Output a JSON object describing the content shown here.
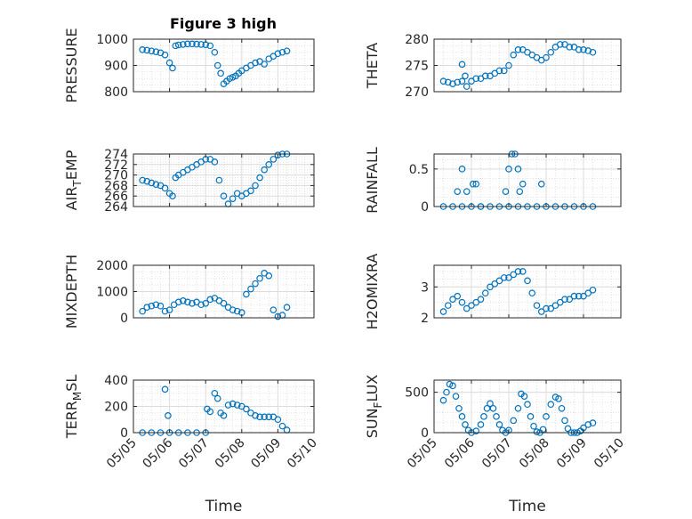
{
  "figure": {
    "title": "Figure 3 high"
  },
  "colors": {
    "marker": "#0072BD",
    "axis": "#262626",
    "grid": "#dcdcdc"
  },
  "chart_data": [
    {
      "type": "scatter",
      "panel": "pressure",
      "title": "Figure 3 high",
      "ylabel": "PRESSURE",
      "xlabel": "",
      "xlim": [
        "05/05",
        "05/10"
      ],
      "ylim": [
        800,
        1000
      ],
      "xticks": [
        "05/05",
        "05/06",
        "05/07",
        "05/08",
        "05/09",
        "05/10"
      ],
      "show_xticks": false,
      "yticks": [
        "800",
        "900",
        "1000"
      ],
      "ytick_values": [
        800,
        900,
        1000
      ],
      "grid": true,
      "series": [
        {
          "x": [
            "05/05 06:00",
            "05/05 09:00",
            "05/05 12:00",
            "05/05 15:00",
            "05/05 18:00",
            "05/05 21:00",
            "05/06 00:00",
            "05/06 02:00",
            "05/06 04:00",
            "05/06 06:00",
            "05/06 09:00",
            "05/06 12:00",
            "05/06 15:00",
            "05/06 18:00",
            "05/06 21:00",
            "05/07 00:00",
            "05/07 03:00",
            "05/07 06:00",
            "05/07 08:00",
            "05/07 10:00",
            "05/07 12:00",
            "05/07 14:00",
            "05/07 16:00",
            "05/07 18:00",
            "05/07 20:00",
            "05/07 22:00",
            "05/08 00:00",
            "05/08 03:00",
            "05/08 06:00",
            "05/08 09:00",
            "05/08 12:00",
            "05/08 15:00",
            "05/08 18:00",
            "05/08 21:00",
            "05/09 00:00",
            "05/09 03:00",
            "05/09 06:00"
          ],
          "y": [
            960,
            958,
            955,
            952,
            948,
            940,
            910,
            890,
            975,
            978,
            980,
            982,
            982,
            981,
            980,
            979,
            975,
            950,
            900,
            870,
            830,
            840,
            850,
            855,
            860,
            870,
            880,
            890,
            900,
            910,
            915,
            905,
            925,
            935,
            945,
            950,
            955
          ]
        }
      ]
    },
    {
      "type": "scatter",
      "panel": "theta",
      "title": "",
      "ylabel": "THETA",
      "xlabel": "",
      "xlim": [
        "05/05",
        "05/10"
      ],
      "ylim": [
        270,
        280
      ],
      "xticks": [
        "05/05",
        "05/06",
        "05/07",
        "05/08",
        "05/09",
        "05/10"
      ],
      "show_xticks": false,
      "yticks": [
        "270",
        "275",
        "280"
      ],
      "ytick_values": [
        270,
        275,
        280
      ],
      "grid": true,
      "series": [
        {
          "x": [
            "05/05 06:00",
            "05/05 09:00",
            "05/05 12:00",
            "05/05 15:00",
            "05/05 18:00",
            "05/05 21:00",
            "05/06 00:00",
            "05/06 03:00",
            "05/06 06:00",
            "05/06 09:00",
            "05/06 12:00",
            "05/06 15:00",
            "05/06 18:00",
            "05/06 21:00",
            "05/07 00:00",
            "05/07 03:00",
            "05/07 06:00",
            "05/07 09:00",
            "05/07 12:00",
            "05/07 15:00",
            "05/07 18:00",
            "05/07 21:00",
            "05/08 00:00",
            "05/08 03:00",
            "05/08 06:00",
            "05/08 09:00",
            "05/08 12:00",
            "05/08 15:00",
            "05/08 18:00",
            "05/08 21:00",
            "05/09 00:00",
            "05/09 03:00",
            "05/09 06:00",
            "05/05 18:00",
            "05/05 20:00"
          ],
          "y": [
            272,
            271.8,
            271.5,
            271.8,
            272,
            271,
            272,
            272.5,
            272.5,
            273,
            273,
            273.5,
            274,
            274,
            275,
            277,
            278,
            278,
            277.5,
            277,
            276.5,
            276,
            276.5,
            277.5,
            278.5,
            279,
            279,
            278.5,
            278.5,
            278,
            278,
            277.8,
            277.5,
            275.2,
            273
          ]
        }
      ]
    },
    {
      "type": "scatter",
      "panel": "air_temp",
      "title": "",
      "ylabel": "AIR_TEMP",
      "xlabel": "",
      "xlim": [
        "05/05",
        "05/10"
      ],
      "ylim": [
        264,
        274
      ],
      "xticks": [
        "05/05",
        "05/06",
        "05/07",
        "05/08",
        "05/09",
        "05/10"
      ],
      "show_xticks": false,
      "yticks": [
        "264",
        "266",
        "268",
        "270",
        "272",
        "274"
      ],
      "ytick_values": [
        264,
        266,
        268,
        270,
        272,
        274
      ],
      "grid": true,
      "series": [
        {
          "x": [
            "05/05 06:00",
            "05/05 09:00",
            "05/05 12:00",
            "05/05 15:00",
            "05/05 18:00",
            "05/05 21:00",
            "05/06 00:00",
            "05/06 02:00",
            "05/06 04:00",
            "05/06 06:00",
            "05/06 09:00",
            "05/06 12:00",
            "05/06 15:00",
            "05/06 18:00",
            "05/06 21:00",
            "05/07 00:00",
            "05/07 03:00",
            "05/07 06:00",
            "05/07 09:00",
            "05/07 12:00",
            "05/07 15:00",
            "05/07 18:00",
            "05/07 21:00",
            "05/08 00:00",
            "05/08 03:00",
            "05/08 06:00",
            "05/08 09:00",
            "05/08 12:00",
            "05/08 15:00",
            "05/08 18:00",
            "05/08 21:00",
            "05/09 00:00",
            "05/09 03:00",
            "05/09 06:00"
          ],
          "y": [
            269,
            268.8,
            268.5,
            268.2,
            268,
            267.5,
            266.5,
            266,
            269.5,
            270,
            270.5,
            271,
            271.5,
            272,
            272.5,
            273,
            273,
            272.5,
            269,
            266,
            264.5,
            265.5,
            266.5,
            266,
            266.5,
            267,
            268,
            269.5,
            271,
            272,
            273,
            273.8,
            274,
            274
          ]
        }
      ]
    },
    {
      "type": "scatter",
      "panel": "rainfall",
      "title": "",
      "ylabel": "RAINFALL",
      "xlabel": "",
      "xlim": [
        "05/05",
        "05/10"
      ],
      "ylim": [
        0,
        0.7
      ],
      "xticks": [
        "05/05",
        "05/06",
        "05/07",
        "05/08",
        "05/09",
        "05/10"
      ],
      "show_xticks": false,
      "yticks": [
        "0",
        "0.5"
      ],
      "ytick_values": [
        0,
        0.5
      ],
      "grid": true,
      "series": [
        {
          "x": [
            "05/05 06:00",
            "05/05 12:00",
            "05/05 18:00",
            "05/06 00:00",
            "05/06 06:00",
            "05/06 12:00",
            "05/06 18:00",
            "05/07 00:00",
            "05/07 06:00",
            "05/07 12:00",
            "05/07 18:00",
            "05/08 00:00",
            "05/08 06:00",
            "05/08 12:00",
            "05/08 18:00",
            "05/09 00:00",
            "05/09 06:00",
            "05/05 15:00",
            "05/05 18:00",
            "05/05 21:00",
            "05/06 01:00",
            "05/06 03:00",
            "05/06 06:00",
            "05/06 22:00",
            "05/07 00:00",
            "05/07 02:00",
            "05/07 04:00",
            "05/07 06:00",
            "05/07 07:00",
            "05/07 09:00",
            "05/07 21:00"
          ],
          "y": [
            0,
            0,
            0,
            0,
            0,
            0,
            0,
            0,
            0,
            0,
            0,
            0,
            0,
            0,
            0,
            0,
            0,
            0.2,
            0.5,
            0.2,
            0.3,
            0.3,
            0,
            0.2,
            0.5,
            0.7,
            0.7,
            0.5,
            0.2,
            0.3,
            0.3
          ]
        }
      ]
    },
    {
      "type": "scatter",
      "panel": "mixdepth",
      "title": "",
      "ylabel": "MIXDEPTH",
      "xlabel": "",
      "xlim": [
        "05/05",
        "05/10"
      ],
      "ylim": [
        0,
        2000
      ],
      "xticks": [
        "05/05",
        "05/06",
        "05/07",
        "05/08",
        "05/09",
        "05/10"
      ],
      "show_xticks": false,
      "yticks": [
        "0",
        "1000",
        "2000"
      ],
      "ytick_values": [
        0,
        1000,
        2000
      ],
      "grid": true,
      "series": [
        {
          "x": [
            "05/05 06:00",
            "05/05 09:00",
            "05/05 12:00",
            "05/05 15:00",
            "05/05 18:00",
            "05/05 21:00",
            "05/06 00:00",
            "05/06 03:00",
            "05/06 06:00",
            "05/06 09:00",
            "05/06 12:00",
            "05/06 15:00",
            "05/06 18:00",
            "05/06 21:00",
            "05/07 00:00",
            "05/07 03:00",
            "05/07 06:00",
            "05/07 09:00",
            "05/07 12:00",
            "05/07 15:00",
            "05/07 18:00",
            "05/07 21:00",
            "05/08 00:00",
            "05/08 03:00",
            "05/08 06:00",
            "05/08 09:00",
            "05/08 12:00",
            "05/08 15:00",
            "05/08 18:00",
            "05/08 21:00",
            "05/09 00:00",
            "05/09 03:00",
            "05/09 06:00"
          ],
          "y": [
            250,
            400,
            450,
            500,
            450,
            250,
            300,
            500,
            600,
            650,
            600,
            550,
            600,
            500,
            550,
            700,
            750,
            650,
            550,
            400,
            300,
            250,
            200,
            900,
            1100,
            1300,
            1500,
            1700,
            1600,
            300,
            50,
            100,
            400
          ]
        }
      ]
    },
    {
      "type": "scatter",
      "panel": "h2omixra",
      "title": "",
      "ylabel": "H2OMIXRA",
      "xlabel": "",
      "xlim": [
        "05/05",
        "05/10"
      ],
      "ylim": [
        2,
        3.7
      ],
      "xticks": [
        "05/05",
        "05/06",
        "05/07",
        "05/08",
        "05/09",
        "05/10"
      ],
      "show_xticks": false,
      "yticks": [
        "2",
        "3"
      ],
      "ytick_values": [
        2,
        3
      ],
      "grid": true,
      "series": [
        {
          "x": [
            "05/05 06:00",
            "05/05 09:00",
            "05/05 12:00",
            "05/05 15:00",
            "05/05 18:00",
            "05/05 21:00",
            "05/06 00:00",
            "05/06 03:00",
            "05/06 06:00",
            "05/06 09:00",
            "05/06 12:00",
            "05/06 15:00",
            "05/06 18:00",
            "05/06 21:00",
            "05/07 00:00",
            "05/07 03:00",
            "05/07 06:00",
            "05/07 09:00",
            "05/07 12:00",
            "05/07 15:00",
            "05/07 18:00",
            "05/07 21:00",
            "05/08 00:00",
            "05/08 03:00",
            "05/08 06:00",
            "05/08 09:00",
            "05/08 12:00",
            "05/08 15:00",
            "05/08 18:00",
            "05/08 21:00",
            "05/09 00:00",
            "05/09 03:00",
            "05/09 06:00"
          ],
          "y": [
            2.2,
            2.4,
            2.6,
            2.7,
            2.5,
            2.3,
            2.4,
            2.5,
            2.6,
            2.8,
            3.0,
            3.1,
            3.2,
            3.3,
            3.3,
            3.4,
            3.5,
            3.5,
            3.2,
            2.8,
            2.4,
            2.2,
            2.3,
            2.3,
            2.4,
            2.5,
            2.6,
            2.6,
            2.7,
            2.7,
            2.7,
            2.8,
            2.9
          ]
        }
      ]
    },
    {
      "type": "scatter",
      "panel": "terr_msl",
      "title": "",
      "ylabel": "TERR_MSL",
      "xlabel": "Time",
      "xlim": [
        "05/05",
        "05/10"
      ],
      "ylim": [
        0,
        400
      ],
      "xticks": [
        "05/05",
        "05/06",
        "05/07",
        "05/08",
        "05/09",
        "05/10"
      ],
      "show_xticks": true,
      "yticks": [
        "0",
        "200",
        "400"
      ],
      "ytick_values": [
        0,
        200,
        400
      ],
      "grid": true,
      "series": [
        {
          "x": [
            "05/05 06:00",
            "05/05 12:00",
            "05/05 18:00",
            "05/06 00:00",
            "05/06 06:00",
            "05/06 12:00",
            "05/06 18:00",
            "05/07 00:00",
            "05/05 21:00",
            "05/05 23:00",
            "05/07 01:00",
            "05/07 03:00",
            "05/07 06:00",
            "05/07 08:00",
            "05/07 10:00",
            "05/07 12:00",
            "05/07 15:00",
            "05/07 18:00",
            "05/07 21:00",
            "05/08 00:00",
            "05/08 03:00",
            "05/08 06:00",
            "05/08 09:00",
            "05/08 12:00",
            "05/08 15:00",
            "05/08 18:00",
            "05/08 21:00",
            "05/09 00:00",
            "05/09 03:00",
            "05/09 06:00"
          ],
          "y": [
            0,
            0,
            0,
            0,
            0,
            0,
            0,
            0,
            330,
            130,
            180,
            160,
            300,
            260,
            150,
            130,
            210,
            220,
            210,
            200,
            180,
            150,
            130,
            120,
            120,
            120,
            120,
            100,
            50,
            20
          ]
        }
      ]
    },
    {
      "type": "scatter",
      "panel": "sun_flux",
      "title": "",
      "ylabel": "SUN_FLUX",
      "xlabel": "Time",
      "xlim": [
        "05/05",
        "05/10"
      ],
      "ylim": [
        0,
        650
      ],
      "xticks": [
        "05/05",
        "05/06",
        "05/07",
        "05/08",
        "05/09",
        "05/10"
      ],
      "show_xticks": true,
      "yticks": [
        "0",
        "500"
      ],
      "ytick_values": [
        0,
        500
      ],
      "grid": true,
      "series": [
        {
          "x": [
            "05/05 06:00",
            "05/05 08:00",
            "05/05 10:00",
            "05/05 12:00",
            "05/05 14:00",
            "05/05 16:00",
            "05/05 18:00",
            "05/05 20:00",
            "05/05 22:00",
            "05/06 00:00",
            "05/06 03:00",
            "05/06 06:00",
            "05/06 08:00",
            "05/06 10:00",
            "05/06 12:00",
            "05/06 14:00",
            "05/06 16:00",
            "05/06 18:00",
            "05/06 20:00",
            "05/06 22:00",
            "05/07 00:00",
            "05/07 03:00",
            "05/07 06:00",
            "05/07 08:00",
            "05/07 10:00",
            "05/07 12:00",
            "05/07 14:00",
            "05/07 16:00",
            "05/07 18:00",
            "05/07 20:00",
            "05/07 22:00",
            "05/08 00:00",
            "05/08 03:00",
            "05/08 06:00",
            "05/08 08:00",
            "05/08 10:00",
            "05/08 12:00",
            "05/08 14:00",
            "05/08 16:00",
            "05/08 18:00",
            "05/08 20:00",
            "05/08 22:00",
            "05/09 00:00",
            "05/09 03:00",
            "05/09 06:00"
          ],
          "y": [
            400,
            500,
            600,
            580,
            450,
            300,
            200,
            100,
            30,
            0,
            20,
            100,
            200,
            300,
            360,
            300,
            200,
            100,
            30,
            0,
            30,
            150,
            300,
            480,
            450,
            350,
            200,
            80,
            10,
            0,
            40,
            200,
            350,
            440,
            420,
            300,
            150,
            50,
            0,
            0,
            0,
            20,
            60,
            100,
            120
          ]
        }
      ]
    }
  ]
}
